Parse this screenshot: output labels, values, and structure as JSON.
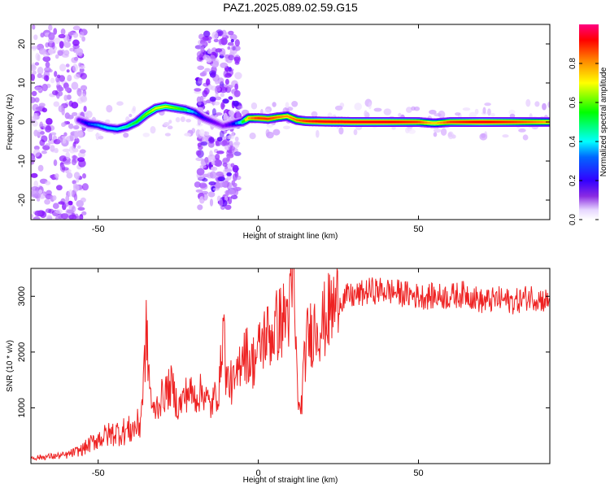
{
  "title": "PAZ1.2025.089.02.59.G15",
  "chart_data": [
    {
      "type": "heatmap",
      "xlabel": "Height of straight line (km)",
      "ylabel": "Frequency (Hz)",
      "xlim": [
        -71,
        91
      ],
      "ylim": [
        -25,
        25
      ],
      "xticks": [
        -50,
        0,
        50
      ],
      "yticks": [
        -20,
        -10,
        0,
        10,
        20
      ],
      "colorbar": {
        "label": "Normalized spectral amplitude",
        "range": [
          0,
          1
        ],
        "ticks": [
          0.0,
          0.2,
          0.4,
          0.6,
          0.8
        ],
        "tick_labels": [
          "0.0",
          "0.2",
          "0.4",
          "0.6",
          "0.8"
        ],
        "colormap": [
          "#ffffff",
          "#cc99ff",
          "#7f00ff",
          "#0000ff",
          "#00ffff",
          "#00ff00",
          "#ffff00",
          "#ff8000",
          "#ff0000",
          "#ff0080"
        ]
      },
      "ridge": {
        "x": [
          -56,
          -53,
          -50,
          -47,
          -44,
          -41,
          -38,
          -35,
          -32,
          -29,
          -26,
          -23,
          -20,
          -17,
          -14,
          -11,
          -8,
          -5,
          -3,
          0,
          3,
          6,
          9,
          12,
          15,
          20,
          30,
          40,
          50,
          55,
          60,
          70,
          80,
          91
        ],
        "frequency": [
          0.5,
          -0.5,
          -0.8,
          -1.5,
          -1.8,
          -1.2,
          0.0,
          2.0,
          3.5,
          4.0,
          3.6,
          3.2,
          2.5,
          1.0,
          0.0,
          -1.0,
          -0.5,
          0.0,
          1.0,
          1.0,
          0.8,
          1.2,
          1.5,
          0.5,
          0.2,
          0.1,
          0.0,
          0.0,
          0.0,
          -0.3,
          0.0,
          0.0,
          0.0,
          0.0
        ],
        "amplitude": [
          0.25,
          0.35,
          0.4,
          0.45,
          0.45,
          0.5,
          0.55,
          0.6,
          0.65,
          0.65,
          0.6,
          0.55,
          0.4,
          0.3,
          0.25,
          0.2,
          0.3,
          0.5,
          0.75,
          0.85,
          0.85,
          0.8,
          0.75,
          0.8,
          0.85,
          0.9,
          0.9,
          0.9,
          0.85,
          0.7,
          0.85,
          0.9,
          0.85,
          0.75
        ]
      },
      "scatter_regions": [
        {
          "x_range": [
            -71,
            -54
          ],
          "freq_range": [
            -25,
            25
          ],
          "amplitude": 0.15
        },
        {
          "x_range": [
            -19,
            -6
          ],
          "freq_range": [
            -22,
            23
          ],
          "amplitude": 0.18
        },
        {
          "x_range": [
            -54,
            91
          ],
          "freq_range": [
            -4,
            5
          ],
          "amplitude": 0.08
        }
      ]
    },
    {
      "type": "line",
      "xlabel": "Height of straight line (km)",
      "ylabel": "SNR (10 * v/v)",
      "xlim": [
        -71,
        91
      ],
      "ylim": [
        0,
        3500
      ],
      "xticks": [
        -50,
        0,
        50
      ],
      "yticks": [
        1000,
        2000,
        3000
      ],
      "color": "#ee2222",
      "series": [
        {
          "x": [
            -71,
            -60,
            -55,
            -50,
            -45,
            -40,
            -37,
            -36,
            -35,
            -34,
            -33,
            -30,
            -27,
            -25,
            -22,
            -20,
            -17,
            -15,
            -12,
            -11,
            -10,
            -7,
            -5,
            -2,
            0,
            2,
            4,
            6,
            8,
            10,
            11,
            12,
            13,
            15,
            18,
            20,
            22,
            25,
            28,
            30,
            35,
            40,
            45,
            50,
            55,
            60,
            65,
            70,
            75,
            80,
            85,
            91
          ],
          "y": [
            100,
            150,
            250,
            450,
            550,
            600,
            700,
            1300,
            2350,
            1500,
            900,
            1200,
            1400,
            1000,
            1300,
            1200,
            1300,
            1000,
            1400,
            2700,
            1500,
            1400,
            2100,
            1800,
            2000,
            2300,
            2300,
            2500,
            2600,
            2800,
            3300,
            1600,
            800,
            2200,
            2500,
            2500,
            2700,
            2900,
            3000,
            3000,
            3100,
            3100,
            3050,
            3000,
            3000,
            3000,
            3050,
            2900,
            2950,
            2900,
            3000,
            2900
          ]
        }
      ]
    }
  ]
}
